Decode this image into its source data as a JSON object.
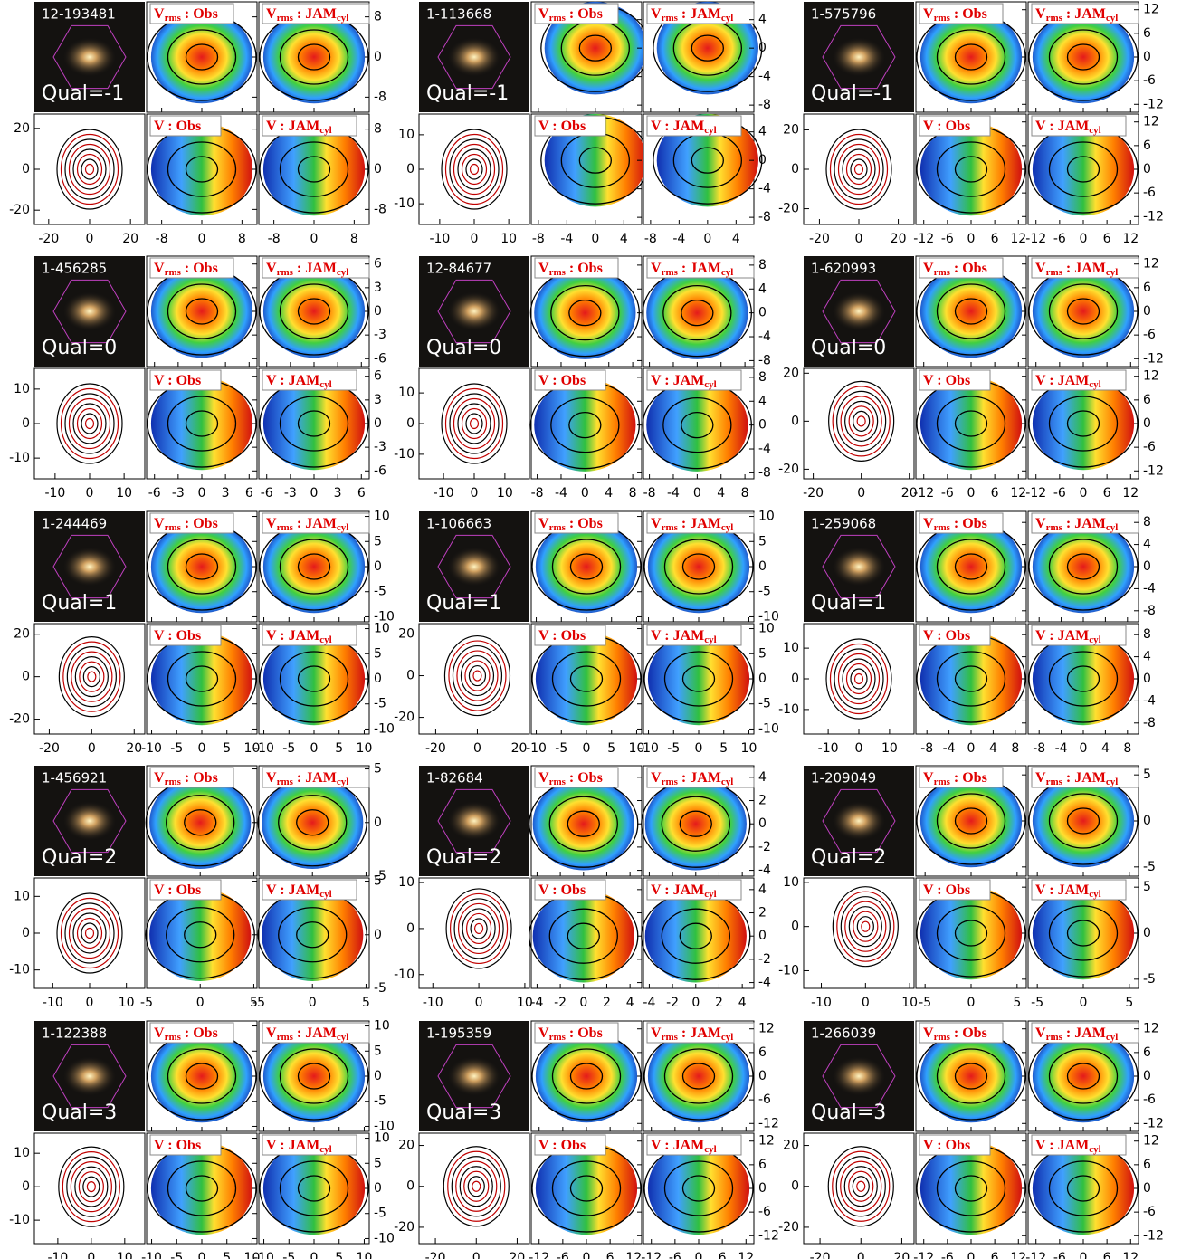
{
  "panel_labels": [
    [
      "V",
      "rms",
      " : Obs"
    ],
    [
      "V",
      "rms",
      " : JAM",
      "cyl"
    ],
    [
      "V : Obs"
    ],
    [
      "V : JAM",
      "cyl"
    ]
  ],
  "galaxies": [
    {
      "id": "12-193481",
      "qual": "Qual=-1",
      "contour_lim": [
        -27,
        27
      ],
      "contour_ticks": [
        -20,
        0,
        20
      ],
      "map_lim": [
        -11,
        11
      ],
      "map_ticks": [
        -8,
        0,
        8
      ]
    },
    {
      "id": "1-113668",
      "qual": "Qual=-1",
      "contour_lim": [
        -16,
        16
      ],
      "contour_ticks": [
        -10,
        0,
        10
      ],
      "map_lim": [
        -9,
        6.5
      ],
      "map_ticks": [
        -8,
        -4,
        0,
        4
      ]
    },
    {
      "id": "1-575796",
      "qual": "Qual=-1",
      "contour_lim": [
        -28,
        28
      ],
      "contour_ticks": [
        -20,
        0,
        20
      ],
      "map_lim": [
        -14,
        14
      ],
      "map_ticks": [
        -12,
        -6,
        0,
        6,
        12
      ]
    },
    {
      "id": "1-456285",
      "qual": "Qual=0",
      "contour_lim": [
        -16,
        16
      ],
      "contour_ticks": [
        -10,
        0,
        10
      ],
      "map_lim": [
        -7,
        7
      ],
      "map_ticks": [
        -6,
        -3,
        0,
        3,
        6
      ]
    },
    {
      "id": "12-84677",
      "qual": "Qual=0",
      "contour_lim": [
        -18,
        18
      ],
      "contour_ticks": [
        -10,
        0,
        10
      ],
      "map_lim": [
        -9,
        9.5
      ],
      "map_ticks": [
        -8,
        -4,
        0,
        4,
        8
      ]
    },
    {
      "id": "1-620993",
      "qual": "Qual=0",
      "contour_lim": [
        -24,
        22
      ],
      "contour_ticks": [
        -20,
        0,
        20
      ],
      "map_lim": [
        -14,
        14
      ],
      "map_ticks": [
        -12,
        -6,
        0,
        6,
        12
      ]
    },
    {
      "id": "1-244469",
      "qual": "Qual=1",
      "contour_lim": [
        -27,
        25
      ],
      "contour_ticks": [
        -20,
        0,
        20
      ],
      "map_lim": [
        -11,
        11
      ],
      "map_ticks": [
        -10,
        -5,
        0,
        5,
        10
      ]
    },
    {
      "id": "1-106663",
      "qual": "Qual=1",
      "contour_lim": [
        -28,
        25
      ],
      "contour_ticks": [
        -20,
        0,
        20
      ],
      "map_lim": [
        -11,
        11
      ],
      "map_ticks": [
        -10,
        -5,
        0,
        5,
        10
      ]
    },
    {
      "id": "1-259068",
      "qual": "Qual=1",
      "contour_lim": [
        -18,
        18
      ],
      "contour_ticks": [
        -10,
        0,
        10
      ],
      "map_lim": [
        -10,
        10
      ],
      "map_ticks": [
        -8,
        -4,
        0,
        4,
        8
      ]
    },
    {
      "id": "1-456921",
      "qual": "Qual=2",
      "contour_lim": [
        -15,
        15
      ],
      "contour_ticks": [
        -10,
        0,
        10
      ],
      "map_lim": [
        -5,
        5.3
      ],
      "map_ticks": [
        -5,
        0,
        5
      ]
    },
    {
      "id": "1-82684",
      "qual": "Qual=2",
      "contour_lim": [
        -13,
        11
      ],
      "contour_ticks": [
        -10,
        0,
        10
      ],
      "map_lim": [
        -4.5,
        5
      ],
      "map_ticks": [
        -4,
        -2,
        0,
        2,
        4
      ]
    },
    {
      "id": "1-209049",
      "qual": "Qual=2",
      "contour_lim": [
        -14,
        11
      ],
      "contour_ticks": [
        -10,
        0,
        10
      ],
      "map_lim": [
        -6,
        6
      ],
      "map_ticks": [
        -5,
        0,
        5
      ]
    },
    {
      "id": "1-122388",
      "qual": "Qual=3",
      "contour_lim": [
        -17,
        16
      ],
      "contour_ticks": [
        -10,
        0,
        10
      ],
      "map_lim": [
        -11,
        11
      ],
      "map_ticks": [
        -10,
        -5,
        0,
        5,
        10
      ]
    },
    {
      "id": "1-195359",
      "qual": "Qual=3",
      "contour_lim": [
        -28,
        26
      ],
      "contour_ticks": [
        -20,
        0,
        20
      ],
      "map_lim": [
        -14,
        14
      ],
      "map_ticks": [
        -12,
        -6,
        0,
        6,
        12
      ]
    },
    {
      "id": "1-266039",
      "qual": "Qual=3",
      "contour_lim": [
        -28,
        26
      ],
      "contour_ticks": [
        -20,
        0,
        20
      ],
      "map_lim": [
        -14,
        14
      ],
      "map_ticks": [
        -12,
        -6,
        0,
        6,
        12
      ]
    }
  ]
}
